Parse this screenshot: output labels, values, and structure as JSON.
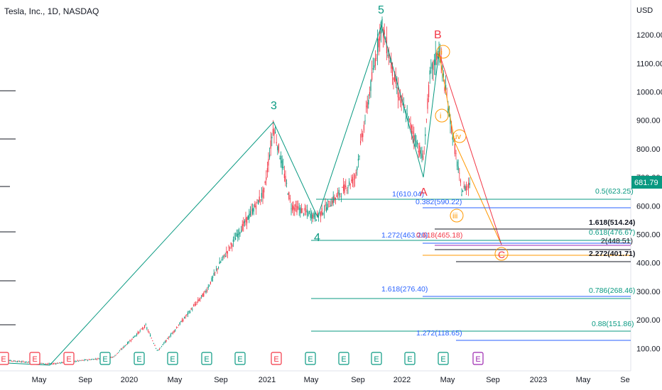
{
  "header": {
    "symbol_title": "Tesla, Inc., 1D, NASDAQ"
  },
  "price_axis": {
    "currency": "USD",
    "ticks": [
      "1200.00",
      "1100.00",
      "1000.00",
      "900.00",
      "800.00",
      "700.00",
      "600.00",
      "500.00",
      "400.00",
      "300.00",
      "200.00",
      "100.00"
    ],
    "current_price": "681.79",
    "current_color": "#089981"
  },
  "time_axis": {
    "ticks": [
      "May",
      "Sep",
      "2020",
      "May",
      "Sep",
      "2021",
      "May",
      "Sep",
      "2022",
      "May",
      "Sep",
      "2023",
      "May",
      "Se"
    ]
  },
  "colors": {
    "green": "#089981",
    "red": "#f23645",
    "orange": "#ff9800",
    "blue": "#2962ff",
    "purple": "#9c27b0",
    "black": "#131722"
  },
  "wave_labels": {
    "w3": "3",
    "w4": "4",
    "w5": "5",
    "A": "A",
    "B": "B",
    "C": "C",
    "i": "i",
    "ii": "ii",
    "iii": "iii",
    "iv": "iv"
  },
  "fib_labels": {
    "f1": "1(610.04)",
    "f2": "0.382(590.22)",
    "f3": "0.5(623.25)",
    "f4": "1.618(514.24)",
    "f5": "1.272(463.20)",
    "f6": "0.618(465.18)",
    "f7": "0.618(476.67)",
    "f8": "2(448.51)",
    "f9": "2.272(401.71)",
    "f10": "1.618(276.40)",
    "f11": "0.786(268.46)",
    "f12": "0.88(151.86)",
    "f13": "1.272(118.65)"
  },
  "earnings_marker": "E",
  "chart_data": {
    "type": "line",
    "title": "Tesla, Inc., 1D, NASDAQ",
    "ylabel": "USD",
    "ylim": [
      20,
      1250
    ],
    "series": [
      {
        "name": "price",
        "x": [
          "2019-01",
          "2019-06",
          "2019-11",
          "2020-02",
          "2020-03",
          "2020-07",
          "2020-09",
          "2020-12",
          "2021-01",
          "2021-03",
          "2021-05",
          "2021-08",
          "2021-11",
          "2022-01",
          "2022-02",
          "2022-03",
          "2022-04",
          "2022-05",
          "2022-06"
        ],
        "values": [
          60,
          45,
          70,
          180,
          90,
          300,
          400,
          650,
          880,
          600,
          560,
          700,
          1240,
          1000,
          760,
          1050,
          1150,
          650,
          682
        ]
      }
    ],
    "elliott_waves": [
      {
        "label": "3",
        "value": 900
      },
      {
        "label": "4",
        "value": 546
      },
      {
        "label": "5",
        "value": 1243
      },
      {
        "label": "A",
        "value": 700
      },
      {
        "label": "B",
        "value": 1150
      },
      {
        "label": "C",
        "value": 440
      }
    ]
  }
}
